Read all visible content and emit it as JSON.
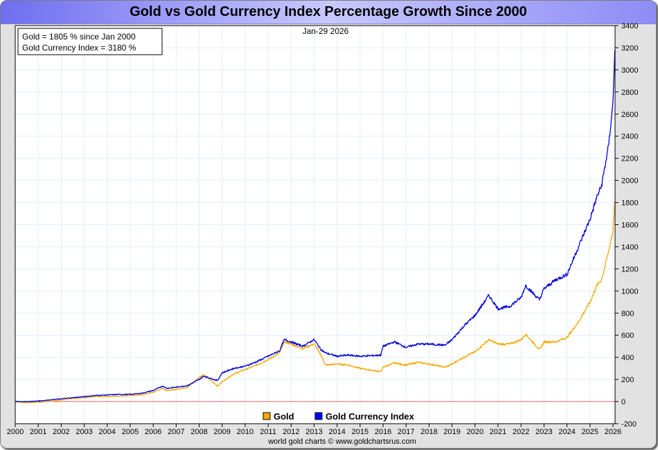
{
  "chart_data": {
    "type": "line",
    "title": "Gold vs Gold Currency Index Percentage Growth Since 2000",
    "date_label": "Jan-29  2026",
    "info_box": [
      "Gold = 1805 % since Jan 2000",
      "Gold Currency Index = 3180 %"
    ],
    "xlabel": "",
    "ylabel": "",
    "xlim": [
      2000,
      2026.1
    ],
    "ylim": [
      -200,
      3400
    ],
    "x_ticks": [
      "2000",
      "2001",
      "2002",
      "2003",
      "2004",
      "2005",
      "2006",
      "2007",
      "2008",
      "2009",
      "2010",
      "2011",
      "2012",
      "2013",
      "2014",
      "2015",
      "2016",
      "2017",
      "2018",
      "2019",
      "2020",
      "2021",
      "2022",
      "2023",
      "2024",
      "2025",
      "2026"
    ],
    "y_ticks": [
      "3400",
      "3200",
      "3000",
      "2800",
      "2600",
      "2400",
      "2200",
      "2000",
      "1800",
      "1600",
      "1400",
      "1200",
      "1000",
      "800",
      "600",
      "400",
      "200",
      "0",
      "-200"
    ],
    "grid": true,
    "reference_line": {
      "y": 0,
      "color": "#e06060"
    },
    "legend": {
      "placement": "bottom-center",
      "entries": [
        "Gold",
        "Gold Currency Index"
      ]
    },
    "series": [
      {
        "name": "Gold",
        "color": "#f5a800",
        "x": [
          2000,
          2000.5,
          2001,
          2001.5,
          2002,
          2002.5,
          2003,
          2003.5,
          2004,
          2004.5,
          2005,
          2005.5,
          2006,
          2006.4,
          2006.6,
          2007,
          2007.5,
          2008,
          2008.2,
          2008.8,
          2009,
          2009.5,
          2010,
          2010.5,
          2011,
          2011.5,
          2011.7,
          2012,
          2012.5,
          2013,
          2013.3,
          2013.5,
          2014,
          2014.5,
          2015,
          2015.9,
          2016,
          2016.5,
          2017,
          2017.5,
          2018,
          2018.7,
          2019,
          2019.5,
          2020,
          2020.6,
          2021,
          2021.5,
          2022,
          2022.2,
          2022.8,
          2023,
          2023.5,
          2024,
          2024.5,
          2025,
          2025.3,
          2025.5,
          2025.8,
          2026,
          2026.08
        ],
        "values": [
          0,
          -10,
          -5,
          0,
          15,
          30,
          35,
          45,
          45,
          50,
          55,
          60,
          85,
          120,
          100,
          110,
          130,
          220,
          245,
          140,
          180,
          250,
          290,
          330,
          380,
          440,
          540,
          520,
          480,
          520,
          420,
          330,
          340,
          330,
          300,
          270,
          310,
          350,
          330,
          355,
          340,
          310,
          340,
          400,
          450,
          560,
          520,
          520,
          560,
          610,
          470,
          540,
          540,
          580,
          720,
          900,
          1050,
          1100,
          1350,
          1550,
          1805
        ]
      },
      {
        "name": "Gold Currency Index",
        "color": "#0000e0",
        "x": [
          2000,
          2000.5,
          2001,
          2001.5,
          2002,
          2002.5,
          2003,
          2003.5,
          2004,
          2004.5,
          2005,
          2005.5,
          2006,
          2006.4,
          2006.6,
          2007,
          2007.5,
          2008,
          2008.2,
          2008.8,
          2009,
          2009.5,
          2010,
          2010.5,
          2011,
          2011.5,
          2011.7,
          2012,
          2012.5,
          2013,
          2013.3,
          2013.5,
          2014,
          2014.5,
          2015,
          2015.9,
          2016,
          2016.5,
          2017,
          2017.5,
          2018,
          2018.7,
          2019,
          2019.5,
          2020,
          2020.6,
          2021,
          2021.5,
          2022,
          2022.2,
          2022.8,
          2023,
          2023.5,
          2024,
          2024.5,
          2025,
          2025.3,
          2025.5,
          2025.8,
          2026,
          2026.08
        ],
        "values": [
          0,
          0,
          5,
          15,
          25,
          35,
          45,
          55,
          60,
          65,
          65,
          75,
          100,
          140,
          120,
          130,
          145,
          200,
          230,
          190,
          260,
          300,
          320,
          360,
          410,
          460,
          560,
          540,
          500,
          560,
          470,
          440,
          410,
          420,
          410,
          420,
          500,
          540,
          490,
          520,
          520,
          510,
          560,
          680,
          780,
          960,
          840,
          860,
          940,
          1050,
          920,
          1020,
          1100,
          1150,
          1400,
          1650,
          1850,
          1950,
          2300,
          2700,
          3180
        ]
      }
    ]
  },
  "footer": "world gold charts © www.goldchartsrus.com"
}
